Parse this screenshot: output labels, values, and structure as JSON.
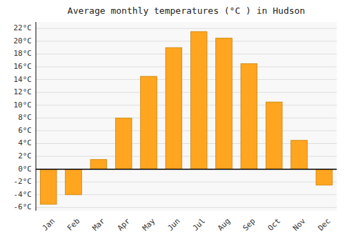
{
  "chart_data": {
    "type": "bar",
    "title": "Average monthly temperatures (°C ) in Hudson",
    "categories": [
      "Jan",
      "Feb",
      "Mar",
      "Apr",
      "May",
      "Jun",
      "Jul",
      "Aug",
      "Sep",
      "Oct",
      "Nov",
      "Dec"
    ],
    "values": [
      -5.5,
      -4.0,
      1.5,
      8.0,
      14.5,
      19.0,
      21.5,
      20.5,
      16.5,
      10.5,
      4.5,
      -2.5
    ],
    "color": "#FFA520",
    "ylim": [
      -6.5,
      23.0
    ],
    "yticks": [
      {
        "value": -6,
        "label": "-6°C"
      },
      {
        "value": -4,
        "label": "-4°C"
      },
      {
        "value": -2,
        "label": "-2°C"
      },
      {
        "value": 0,
        "label": "0°C"
      },
      {
        "value": 2,
        "label": "2°C"
      },
      {
        "value": 4,
        "label": "4°C"
      },
      {
        "value": 6,
        "label": "6°C"
      },
      {
        "value": 8,
        "label": "8°C"
      },
      {
        "value": 10,
        "label": "10°C"
      },
      {
        "value": 12,
        "label": "12°C"
      },
      {
        "value": 14,
        "label": "14°C"
      },
      {
        "value": 16,
        "label": "16°C"
      },
      {
        "value": 18,
        "label": "18°C"
      },
      {
        "value": 20,
        "label": "20°C"
      },
      {
        "value": 22,
        "label": "22°C"
      }
    ],
    "grid": true
  }
}
